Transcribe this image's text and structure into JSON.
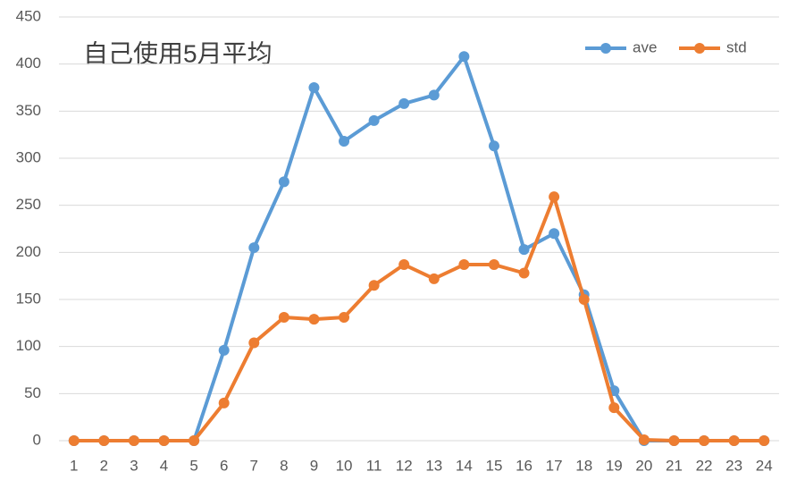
{
  "chart_data": {
    "type": "line",
    "title": "自己使用5月平均",
    "categories": [
      "1",
      "2",
      "3",
      "4",
      "5",
      "6",
      "7",
      "8",
      "9",
      "10",
      "11",
      "12",
      "13",
      "14",
      "15",
      "16",
      "17",
      "18",
      "19",
      "20",
      "21",
      "22",
      "23",
      "24"
    ],
    "series": [
      {
        "name": "ave",
        "color": "#5b9bd5",
        "values": [
          0,
          0,
          0,
          0,
          0,
          96,
          205,
          275,
          375,
          318,
          340,
          358,
          367,
          408,
          313,
          203,
          220,
          155,
          53,
          0,
          0,
          0,
          0,
          0
        ]
      },
      {
        "name": "std",
        "color": "#ed7d31",
        "values": [
          0,
          0,
          0,
          0,
          0,
          40,
          104,
          131,
          129,
          131,
          165,
          187,
          172,
          187,
          187,
          178,
          259,
          150,
          35,
          1,
          0,
          0,
          0,
          0
        ]
      }
    ],
    "ylim": [
      0,
      450
    ],
    "yticks": [
      0,
      50,
      100,
      150,
      200,
      250,
      300,
      350,
      400,
      450
    ],
    "grid": true,
    "legend": "top-right"
  }
}
